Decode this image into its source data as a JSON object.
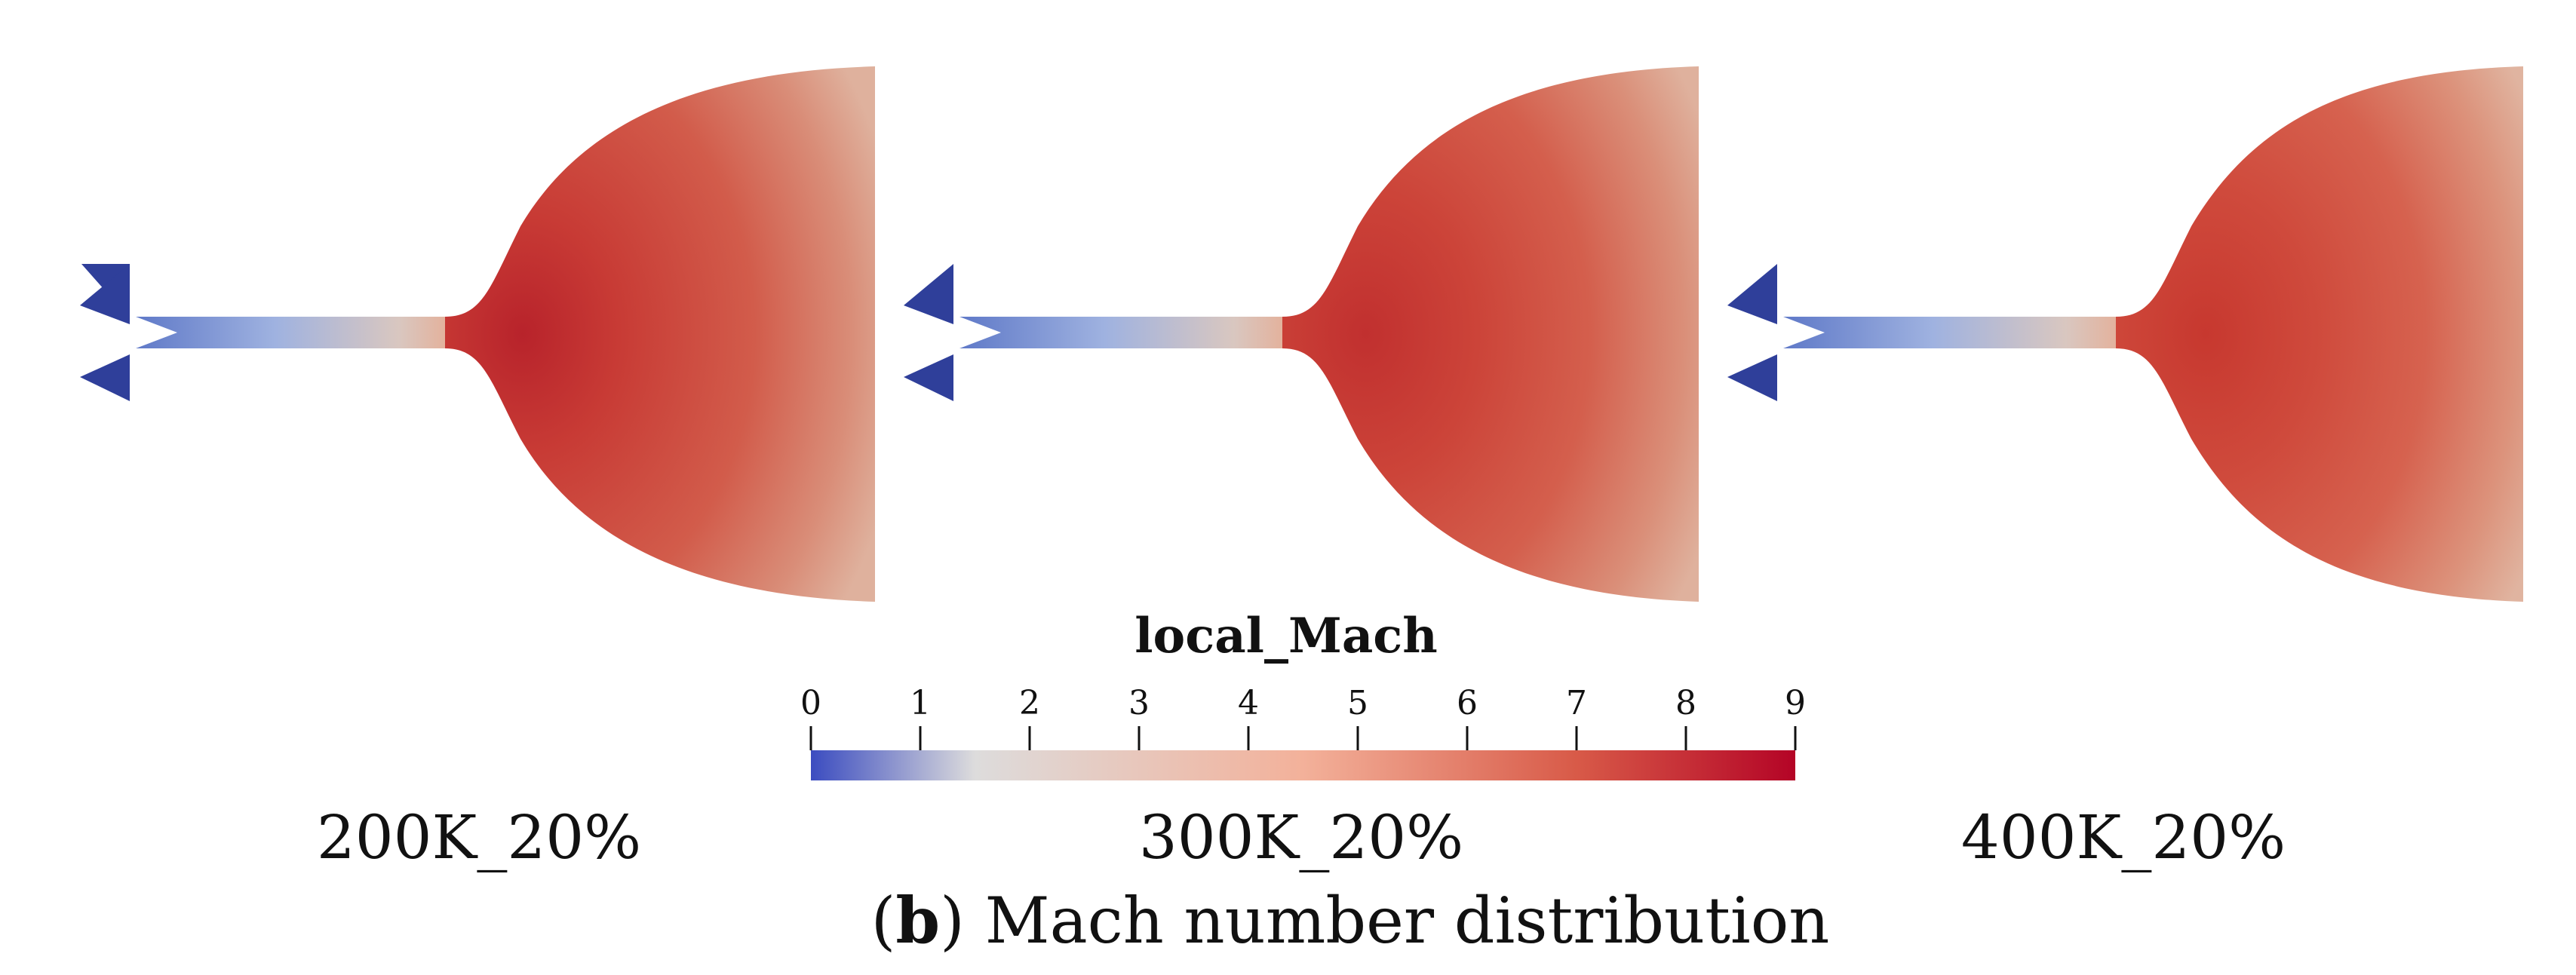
{
  "figure": {
    "caption": {
      "letter": "b",
      "text": "Mach number distribution"
    },
    "panels": [
      {
        "label": "200K_20%"
      },
      {
        "label": "300K_20%"
      },
      {
        "label": "400K_20%"
      }
    ],
    "colorbar": {
      "title": "local_Mach",
      "min": 0,
      "max": 9,
      "ticks": [
        "0",
        "1",
        "2",
        "3",
        "4",
        "5",
        "6",
        "7",
        "8",
        "9"
      ],
      "colormap_stops": [
        {
          "value": 0,
          "color": "#3b4cc0"
        },
        {
          "value": 1.5,
          "color": "#dddcdc"
        },
        {
          "value": 4.5,
          "color": "#f3b19a"
        },
        {
          "value": 7.0,
          "color": "#d85a48"
        },
        {
          "value": 9,
          "color": "#b40426"
        }
      ]
    },
    "colors": {
      "inlet_triangles": "#2f3f9a",
      "throat": "#7f94cf",
      "plume_core": "#c5312e",
      "plume_mid": "#d35a48",
      "plume_edge": "#ddb09a"
    }
  }
}
